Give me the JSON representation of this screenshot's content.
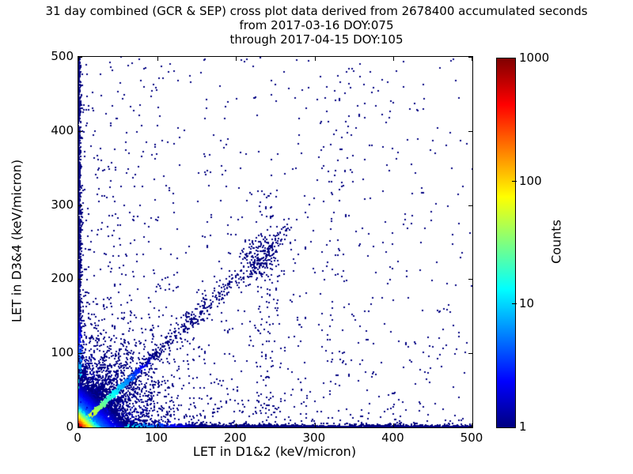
{
  "chart_data": {
    "type": "heatmap",
    "title_lines": [
      "31 day combined (GCR & SEP) cross plot data derived from 2678400 accumulated seconds",
      "from 2017-03-16 DOY:075",
      "through 2017-04-15 DOY:105"
    ],
    "xlabel": "LET in D1&2 (keV/micron)",
    "ylabel": "LET in D3&4 (keV/micron)",
    "xlim": [
      0,
      500
    ],
    "ylim": [
      0,
      500
    ],
    "xticks": [
      0,
      100,
      200,
      300,
      400,
      500
    ],
    "yticks": [
      0,
      100,
      200,
      300,
      400,
      500
    ],
    "grid": false,
    "axis_color": "#000000",
    "background_color": "#ffffff",
    "min_count_point_color": "#000080",
    "colorbar": {
      "label": "Counts",
      "scale": "log",
      "min": 1,
      "max": 1000,
      "ticks": [
        1,
        10,
        100,
        1000
      ],
      "colormap": "jet"
    },
    "colormap_stops": [
      {
        "t": 0.0,
        "c": "#000080"
      },
      {
        "t": 0.125,
        "c": "#0000ff"
      },
      {
        "t": 0.375,
        "c": "#00ffff"
      },
      {
        "t": 0.5,
        "c": "#7fff7f"
      },
      {
        "t": 0.625,
        "c": "#ffff00"
      },
      {
        "t": 0.875,
        "c": "#ff0000"
      },
      {
        "t": 1.0,
        "c": "#800000"
      }
    ],
    "density_model": {
      "seed": 1337,
      "point_size": 2,
      "components": [
        {
          "name": "background-weighted",
          "n": 950,
          "x": {
            "kind": "pow",
            "max": 500,
            "k": 1.6
          },
          "y": {
            "kind": "pow",
            "max": 500,
            "k": 1.6
          },
          "count": {
            "c0": 1
          }
        },
        {
          "name": "background-uniform",
          "n": 200,
          "x": {
            "kind": "uniform",
            "min": 0,
            "max": 500
          },
          "y": {
            "kind": "uniform",
            "min": 0,
            "max": 500
          },
          "count": {
            "c0": 1
          }
        },
        {
          "name": "vertical-band-240",
          "n": 90,
          "x": {
            "kind": "gauss",
            "mu": 240,
            "sigma": 7
          },
          "y": {
            "kind": "uniform",
            "min": 0,
            "max": 320
          },
          "count": {
            "c0": 1
          }
        },
        {
          "name": "vertical-band-330",
          "n": 70,
          "x": {
            "kind": "gauss",
            "mu": 332,
            "sigma": 14
          },
          "y": {
            "kind": "uniform",
            "min": 60,
            "max": 480
          },
          "count": {
            "c0": 1
          }
        },
        {
          "name": "diagonal-scatter",
          "n": 420,
          "x": {
            "kind": "uniform",
            "min": 25,
            "max": 270
          },
          "y": {
            "kind": "diag",
            "slope": 1,
            "sigma0": 5,
            "sigmaGrow": 0.02
          },
          "count": {
            "c0": 1
          }
        },
        {
          "name": "diagonal-cluster",
          "n": 170,
          "x": {
            "kind": "gauss",
            "mu": 231,
            "sigma": 13
          },
          "y": {
            "kind": "gauss",
            "mu": 228,
            "sigma": 15
          },
          "count": {
            "c0": 1
          }
        },
        {
          "name": "x-axis-band-far",
          "n": 900,
          "x": {
            "kind": "uniform",
            "min": 0,
            "max": 500
          },
          "y": {
            "kind": "exp",
            "scale": 0.9
          },
          "count": {
            "c0": 2,
            "decay": 300
          }
        },
        {
          "name": "y-axis-band-far",
          "n": 380,
          "x": {
            "kind": "exp",
            "scale": 0.9
          },
          "y": {
            "kind": "uniform",
            "min": 0,
            "max": 500
          },
          "count": {
            "c0": 2,
            "decay": 300
          }
        },
        {
          "name": "wide-origin-cloud",
          "n": 1600,
          "x": {
            "kind": "exp",
            "scale": 45
          },
          "y": {
            "kind": "exp",
            "scale": 45
          },
          "count": {
            "c0": 2,
            "decay": 200
          }
        },
        {
          "name": "x-axis-band",
          "n": 3200,
          "x": {
            "kind": "pow",
            "max": 500,
            "k": 2.1
          },
          "y": {
            "kind": "exp",
            "scale": 1.1
          },
          "count": {
            "c0": 80,
            "decay": 35
          }
        },
        {
          "name": "y-axis-band",
          "n": 2000,
          "x": {
            "kind": "exp",
            "scale": 1.1
          },
          "y": {
            "kind": "pow",
            "max": 500,
            "k": 1.9
          },
          "count": {
            "c0": 80,
            "decay": 35
          }
        },
        {
          "name": "fan-ray-slope-0p55",
          "n": 260,
          "x": {
            "kind": "exp",
            "scale": 30
          },
          "y": {
            "kind": "diag",
            "slope": 0.55,
            "sigma0": 1.5,
            "sigmaGrow": 0.06
          },
          "count": {
            "c0": 10,
            "decay": 35
          }
        },
        {
          "name": "fan-ray-slope-0p75",
          "n": 240,
          "x": {
            "kind": "exp",
            "scale": 26
          },
          "y": {
            "kind": "diag",
            "slope": 0.75,
            "sigma0": 1.5,
            "sigmaGrow": 0.06
          },
          "count": {
            "c0": 10,
            "decay": 35
          }
        },
        {
          "name": "fan-ray-slope-1p4",
          "n": 260,
          "x": {
            "kind": "exp",
            "scale": 22
          },
          "y": {
            "kind": "diag",
            "slope": 1.4,
            "sigma0": 1.5,
            "sigmaGrow": 0.08
          },
          "count": {
            "c0": 10,
            "decay": 35
          }
        },
        {
          "name": "fan-ray-slope-1p9",
          "n": 220,
          "x": {
            "kind": "exp",
            "scale": 18
          },
          "y": {
            "kind": "diag",
            "slope": 1.9,
            "sigma0": 1.5,
            "sigmaGrow": 0.1
          },
          "count": {
            "c0": 10,
            "decay": 35
          }
        },
        {
          "name": "fan-ray-slope-2p8",
          "n": 200,
          "x": {
            "kind": "exp",
            "scale": 13
          },
          "y": {
            "kind": "diag",
            "slope": 2.8,
            "sigma0": 1.5,
            "sigmaGrow": 0.12
          },
          "count": {
            "c0": 8,
            "decay": 35
          }
        },
        {
          "name": "origin-cloud",
          "n": 5200,
          "x": {
            "kind": "exp",
            "scale": 16
          },
          "y": {
            "kind": "exp",
            "scale": 16
          },
          "count": {
            "c0": 25,
            "decay": 20
          }
        },
        {
          "name": "diagonal-ridge",
          "n": 1400,
          "x": {
            "kind": "exp",
            "scale": 28
          },
          "y": {
            "kind": "diag",
            "slope": 1,
            "sigma0": 1.2,
            "sigmaGrow": 0.02
          },
          "count": {
            "c0": 130,
            "decay": 40
          }
        },
        {
          "name": "origin-hotspot",
          "n": 6000,
          "x": {
            "kind": "exp",
            "scale": 3.5
          },
          "y": {
            "kind": "exp",
            "scale": 3.5
          },
          "count": {
            "c0": 950,
            "decay": 6
          }
        }
      ]
    }
  }
}
